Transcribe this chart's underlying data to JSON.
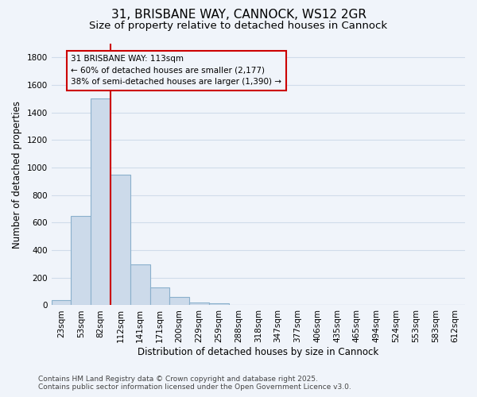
{
  "title": "31, BRISBANE WAY, CANNOCK, WS12 2GR",
  "subtitle": "Size of property relative to detached houses in Cannock",
  "xlabel": "Distribution of detached houses by size in Cannock",
  "ylabel": "Number of detached properties",
  "categories": [
    "23sqm",
    "53sqm",
    "82sqm",
    "112sqm",
    "141sqm",
    "171sqm",
    "200sqm",
    "229sqm",
    "259sqm",
    "288sqm",
    "318sqm",
    "347sqm",
    "377sqm",
    "406sqm",
    "435sqm",
    "465sqm",
    "494sqm",
    "524sqm",
    "553sqm",
    "583sqm",
    "612sqm"
  ],
  "values": [
    40,
    650,
    1500,
    950,
    295,
    130,
    60,
    22,
    12,
    0,
    0,
    0,
    0,
    0,
    0,
    0,
    0,
    0,
    0,
    0,
    0
  ],
  "bar_color": "#ccdaea",
  "bar_edge_color": "#8ab0cc",
  "bg_color": "#f0f4fa",
  "grid_color": "#d0dcea",
  "vline_bin_index": 3,
  "vline_color": "#cc0000",
  "annotation_line1": "31 BRISBANE WAY: 113sqm",
  "annotation_line2": "← 60% of detached houses are smaller (2,177)",
  "annotation_line3": "38% of semi-detached houses are larger (1,390) →",
  "annotation_box_edgecolor": "#cc0000",
  "ylim": [
    0,
    1900
  ],
  "yticks": [
    0,
    200,
    400,
    600,
    800,
    1000,
    1200,
    1400,
    1600,
    1800
  ],
  "footer_line1": "Contains HM Land Registry data © Crown copyright and database right 2025.",
  "footer_line2": "Contains public sector information licensed under the Open Government Licence v3.0.",
  "title_fontsize": 11,
  "subtitle_fontsize": 9.5,
  "axis_label_fontsize": 8.5,
  "tick_fontsize": 7.5,
  "annotation_fontsize": 7.5,
  "footer_fontsize": 6.5
}
